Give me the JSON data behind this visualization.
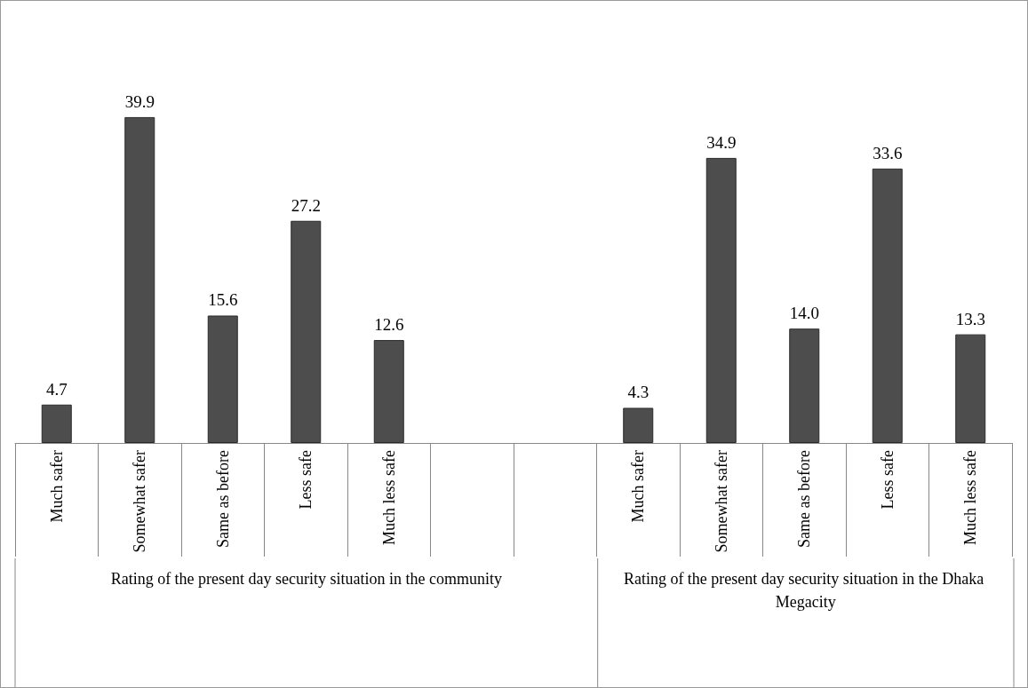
{
  "chart_data": {
    "type": "bar",
    "categories": [
      "Much safer",
      "Somewhat safer",
      "Same as before",
      "Less safe",
      "Much less safe",
      null,
      null,
      "Much safer",
      "Somewhat safer",
      "Same as before",
      "Less safe",
      "Much less safe"
    ],
    "values": [
      4.7,
      39.9,
      15.6,
      27.2,
      12.6,
      null,
      null,
      4.3,
      34.9,
      14.0,
      33.6,
      13.3
    ],
    "value_labels": [
      "4.7",
      "39.9",
      "15.6",
      "27.2",
      "12.6",
      null,
      null,
      "4.3",
      "34.9",
      "14.0",
      "33.6",
      "13.3"
    ],
    "annotations": [
      "Rating of the present day security situation in the community",
      "Rating of the present day security situation in the Dhaka Megacity"
    ],
    "color": "#4d4d4d"
  }
}
